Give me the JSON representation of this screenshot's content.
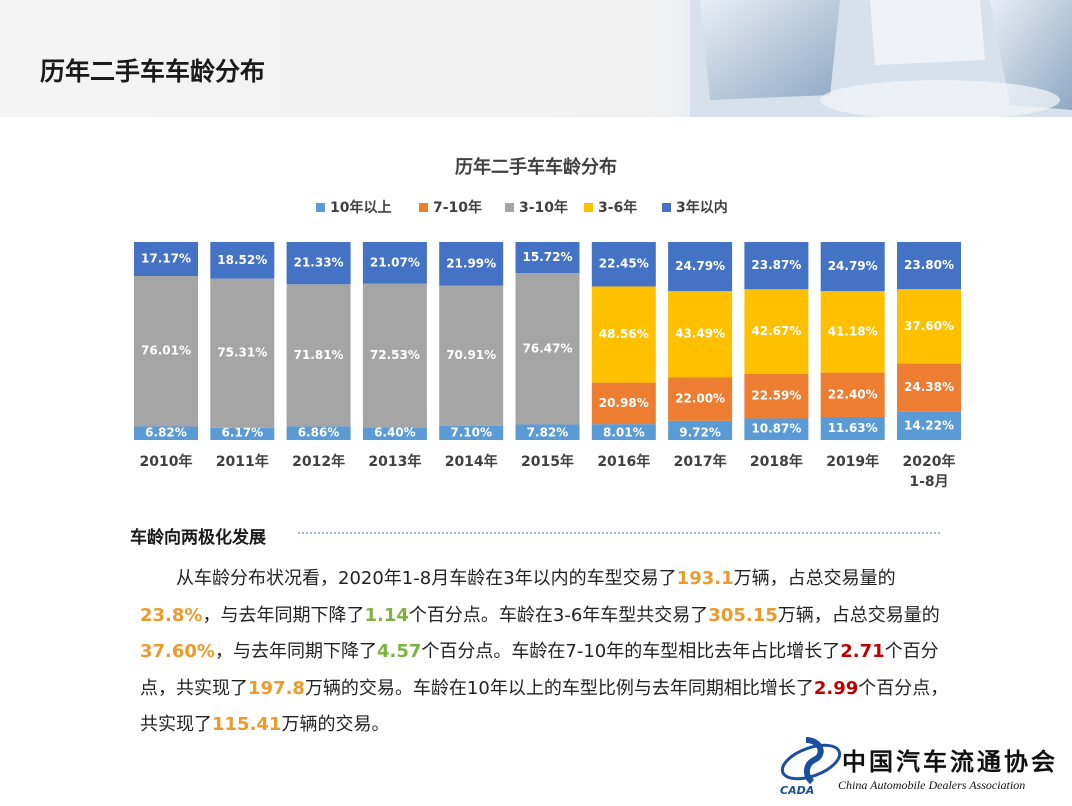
{
  "header": {
    "title": "历年二手车车龄分布"
  },
  "chart_data": {
    "type": "stacked_bar",
    "title": "历年二手车车龄分布",
    "categories": [
      "2010年",
      "2011年",
      "2012年",
      "2013年",
      "2014年",
      "2015年",
      "2016年",
      "2017年",
      "2018年",
      "2019年",
      "2020年1-8月"
    ],
    "series": [
      {
        "name": "10年以上",
        "color": "#5b9bd5",
        "values": [
          6.82,
          6.17,
          6.86,
          6.4,
          7.1,
          7.82,
          8.01,
          9.72,
          10.87,
          11.63,
          14.22
        ],
        "value_labels": [
          "6.82%",
          "6.17%",
          "6.86%",
          "6.40%",
          "7.10%",
          "7.82%",
          "8.01%",
          "9.72%",
          "10.87%",
          "11.63%",
          "14.22%"
        ]
      },
      {
        "name": "7-10年",
        "color": "#ed7d31",
        "values": [
          null,
          null,
          null,
          null,
          null,
          null,
          20.98,
          22.0,
          22.59,
          22.4,
          24.38
        ],
        "value_labels": [
          null,
          null,
          null,
          null,
          null,
          null,
          "20.98%",
          "22.00%",
          "22.59%",
          "22.40%",
          "24.38%"
        ]
      },
      {
        "name": "3-10年",
        "color": "#a5a5a5",
        "values": [
          76.01,
          75.31,
          71.81,
          72.53,
          70.91,
          76.47,
          null,
          null,
          null,
          null,
          null
        ],
        "value_labels": [
          "76.01%",
          "75.31%",
          "71.81%",
          "72.53%",
          "70.91%",
          "76.47%",
          null,
          null,
          null,
          null,
          null
        ]
      },
      {
        "name": "3-6年",
        "color": "#ffc000",
        "values": [
          null,
          null,
          null,
          null,
          null,
          null,
          48.56,
          43.49,
          42.67,
          41.18,
          37.6
        ],
        "value_labels": [
          null,
          null,
          null,
          null,
          null,
          null,
          "48.56%",
          "43.49%",
          "42.67%",
          "41.18%",
          "37.60%"
        ]
      },
      {
        "name": "3年以内",
        "color": "#4472c4",
        "values": [
          17.17,
          18.52,
          21.33,
          21.07,
          21.99,
          15.72,
          22.45,
          24.79,
          23.87,
          24.79,
          23.8
        ],
        "value_labels": [
          "17.17%",
          "18.52%",
          "21.33%",
          "21.07%",
          "21.99%",
          "15.72%",
          "22.45%",
          "24.79%",
          "23.87%",
          "24.79%",
          "23.80%"
        ]
      }
    ],
    "legend": "top",
    "grid": false
  },
  "section": {
    "title": "车龄向两极化发展",
    "paragraph": [
      {
        "text": "从车龄分布状况看，2020年1-8月车龄在3年以内的车型交易了"
      },
      {
        "text": "193.1",
        "color": "#ed9a2c"
      },
      {
        "text": "万辆，占总交易量的"
      },
      {
        "text": "23.8%",
        "color": "#ed9a2c"
      },
      {
        "text": "，与去年同期下降了"
      },
      {
        "text": "1.14",
        "color": "#7cb342"
      },
      {
        "text": "个百分点。车龄在3-6年车型共交易了"
      },
      {
        "text": "305.15",
        "color": "#ed9a2c"
      },
      {
        "text": "万辆，占总交易量的"
      },
      {
        "text": "37.60%",
        "color": "#ed9a2c"
      },
      {
        "text": "，与去年同期下降了"
      },
      {
        "text": "4.57",
        "color": "#7cb342"
      },
      {
        "text": "个百分点。车龄在7-10年的车型相比去年占比增长了"
      },
      {
        "text": "2.71",
        "color": "#c00000"
      },
      {
        "text": "个百分点，共实现了"
      },
      {
        "text": "197.8",
        "color": "#ed9a2c"
      },
      {
        "text": "万辆的交易。车龄在10年以上的车型比例与去年同期相比增长了"
      },
      {
        "text": "2.99",
        "color": "#c00000"
      },
      {
        "text": "个百分点，共实现了"
      },
      {
        "text": "115.41",
        "color": "#ed9a2c"
      },
      {
        "text": "万辆的交易。"
      }
    ]
  },
  "logo": {
    "name": "中国汽车流通协会",
    "english": "China Automobile Dealers Association",
    "abbr": "CADA"
  }
}
